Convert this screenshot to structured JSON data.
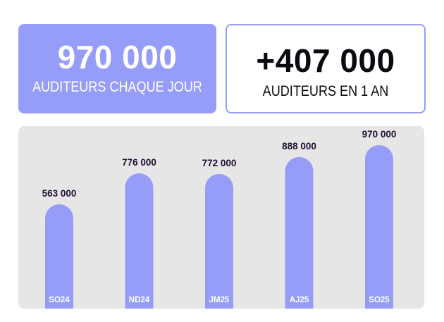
{
  "stats": {
    "daily": {
      "value": "970 000",
      "label": "AUDITEURS CHAQUE JOUR"
    },
    "growth": {
      "value": "+407 000",
      "label": "AUDITEURS EN 1 AN"
    }
  },
  "colors": {
    "accent": "#969df8",
    "panel": "#e6e6e6",
    "value_text": "#211032"
  },
  "chart_data": {
    "type": "bar",
    "categories": [
      "SO24",
      "ND24",
      "JM25",
      "AJ25",
      "SO25"
    ],
    "values": [
      563000,
      776000,
      772000,
      888000,
      970000
    ],
    "labels": [
      "563 000",
      "776 000",
      "772 000",
      "888 000",
      "970 000"
    ],
    "grid": false,
    "legend": "none"
  }
}
